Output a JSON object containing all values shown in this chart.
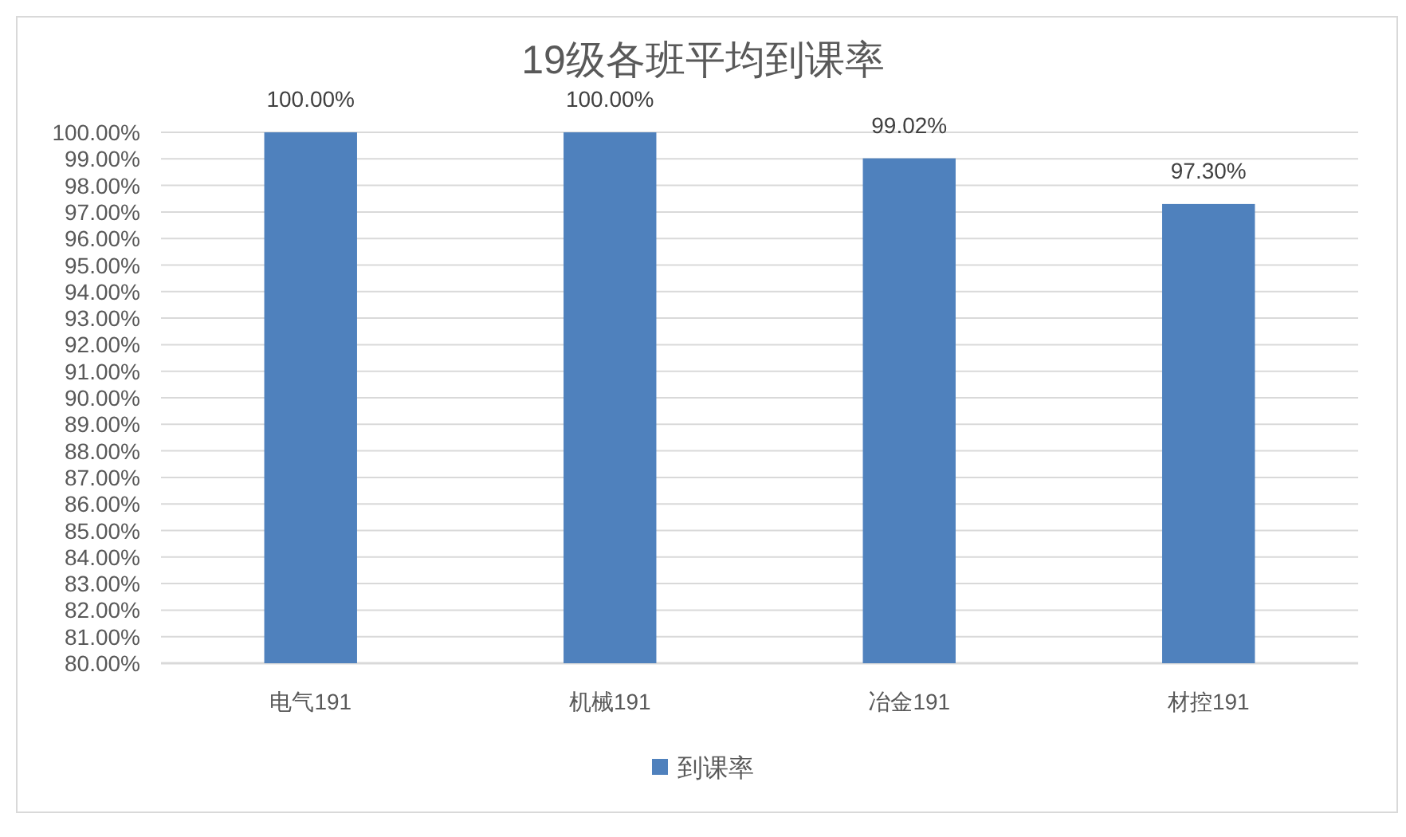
{
  "chart_data": {
    "type": "bar",
    "title": "19级各班平均到课率",
    "categories": [
      "电气191",
      "机械191",
      "冶金191",
      "材控191"
    ],
    "series": [
      {
        "name": "到课率",
        "color": "#4f81bd",
        "values": [
          100,
          100,
          99.02,
          97.3
        ],
        "value_labels": [
          "100.00%",
          "100.00%",
          "99.02%",
          "97.30%"
        ]
      }
    ],
    "ylim": [
      80,
      100
    ],
    "yticks": [
      {
        "value": 80,
        "label": "80.00%"
      },
      {
        "value": 81,
        "label": "81.00%"
      },
      {
        "value": 82,
        "label": "82.00%"
      },
      {
        "value": 83,
        "label": "83.00%"
      },
      {
        "value": 84,
        "label": "84.00%"
      },
      {
        "value": 85,
        "label": "85.00%"
      },
      {
        "value": 86,
        "label": "86.00%"
      },
      {
        "value": 87,
        "label": "87.00%"
      },
      {
        "value": 88,
        "label": "88.00%"
      },
      {
        "value": 89,
        "label": "89.00%"
      },
      {
        "value": 90,
        "label": "90.00%"
      },
      {
        "value": 91,
        "label": "91.00%"
      },
      {
        "value": 92,
        "label": "92.00%"
      },
      {
        "value": 93,
        "label": "93.00%"
      },
      {
        "value": 94,
        "label": "94.00%"
      },
      {
        "value": 95,
        "label": "95.00%"
      },
      {
        "value": 96,
        "label": "96.00%"
      },
      {
        "value": 97,
        "label": "97.00%"
      },
      {
        "value": 98,
        "label": "98.00%"
      },
      {
        "value": 99,
        "label": "99.00%"
      },
      {
        "value": 100,
        "label": "100.00%"
      }
    ],
    "grid": "y",
    "legend": "bottom"
  }
}
